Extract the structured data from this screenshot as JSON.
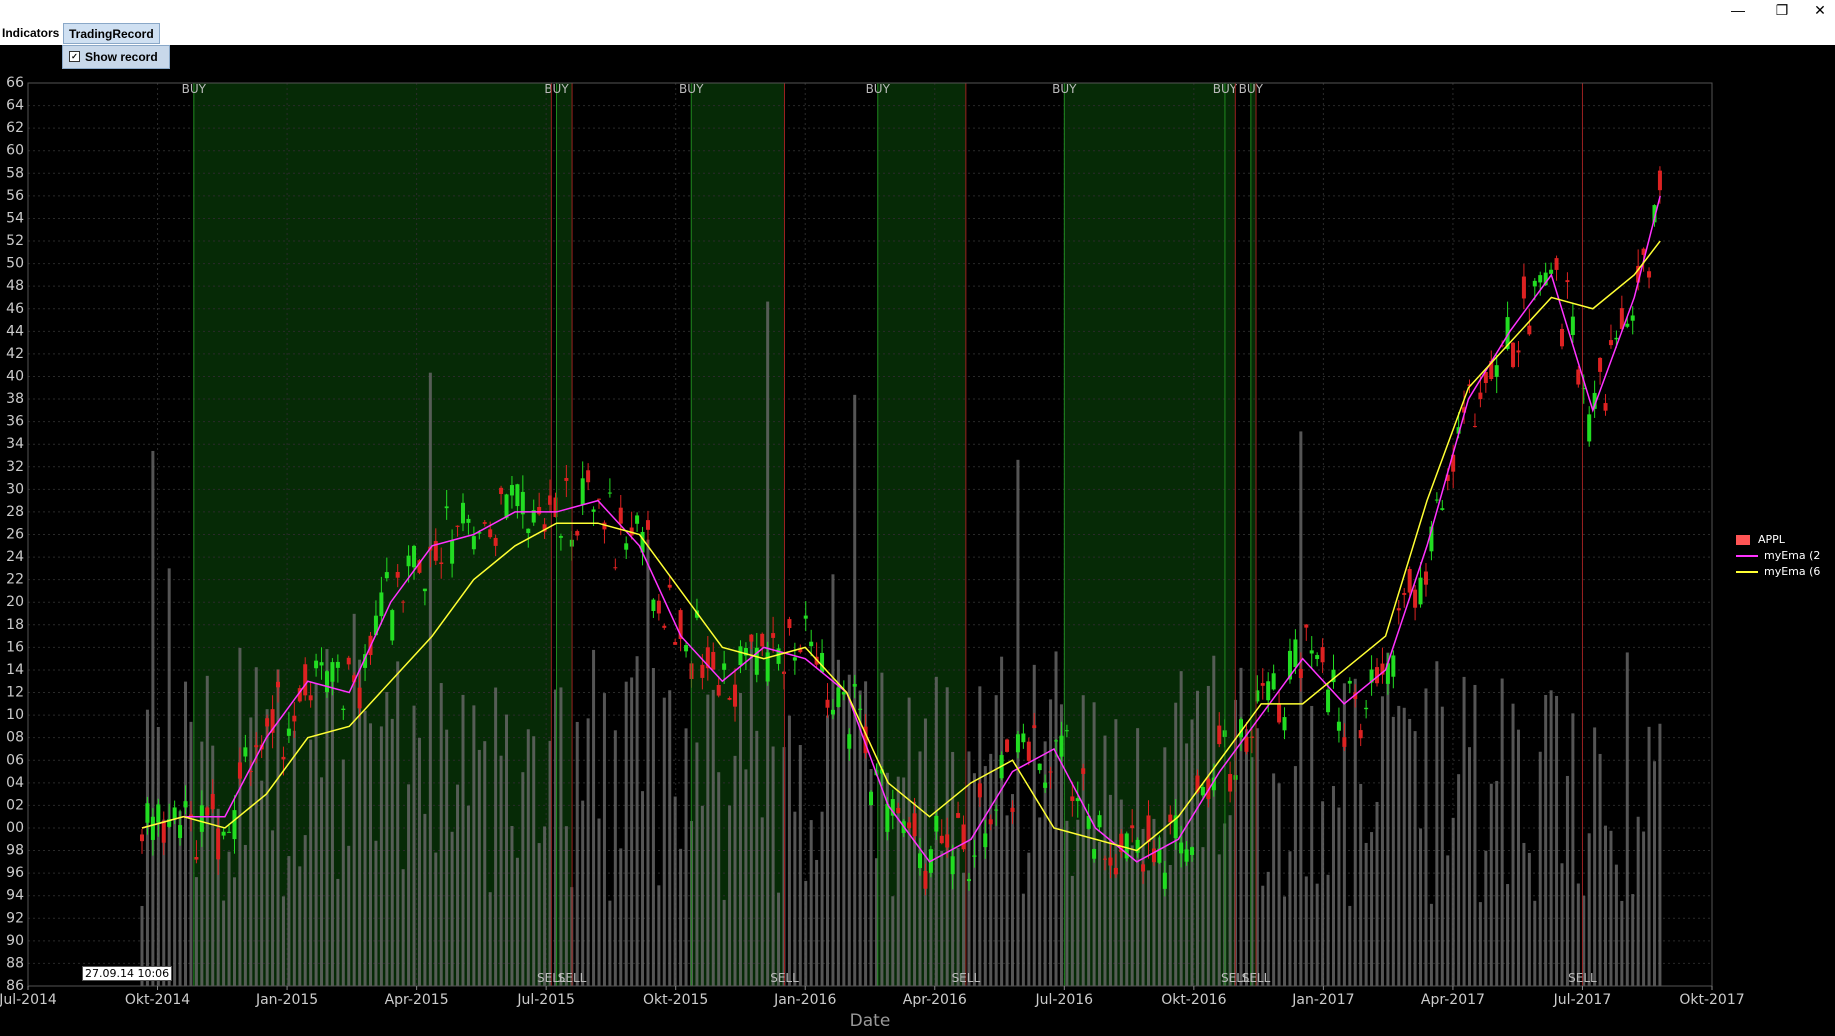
{
  "menubar": {
    "indicators_label": "Indicators",
    "tradingrecord_label": "TradingRecord",
    "show_record_label": "Show record",
    "show_record_checked": true
  },
  "window_controls": {
    "minimize": "—",
    "restore": "❐",
    "close": "✕"
  },
  "tooltip": "27.09.14 10:06",
  "legend": [
    {
      "label": "APPL",
      "color": "#ff5555",
      "kind": "box"
    },
    {
      "label": "myEma (2",
      "color": "#ff33ff",
      "kind": "line"
    },
    {
      "label": "myEma (6",
      "color": "#ffff33",
      "kind": "line"
    }
  ],
  "chart_data": {
    "type": "line",
    "xlabel": "Date",
    "ylabel": "",
    "x_ticks": [
      "Jul-2014",
      "Okt-2014",
      "Jan-2015",
      "Apr-2015",
      "Jul-2015",
      "Okt-2015",
      "Jan-2016",
      "Apr-2016",
      "Jul-2016",
      "Okt-2016",
      "Jan-2017",
      "Apr-2017",
      "Jul-2017",
      "Okt-2017"
    ],
    "y_ticks": [
      "86",
      "88",
      "90",
      "92",
      "94",
      "96",
      "98",
      "00",
      "02",
      "04",
      "06",
      "08",
      "10",
      "12",
      "14",
      "16",
      "18",
      "20",
      "22",
      "24",
      "26",
      "28",
      "30",
      "32",
      "34",
      "36",
      "38",
      "40",
      "42",
      "44",
      "46",
      "48",
      "50",
      "52",
      "54",
      "56",
      "58",
      "60",
      "62",
      "64",
      "66"
    ],
    "ylim": [
      86,
      166
    ],
    "xlim": [
      2014.5,
      2017.75
    ],
    "grid": true,
    "series": [
      {
        "name": "myEma (2",
        "color": "#ff33ff",
        "x": [
          2014.72,
          2014.8,
          2014.88,
          2014.96,
          2015.04,
          2015.12,
          2015.2,
          2015.28,
          2015.36,
          2015.44,
          2015.52,
          2015.6,
          2015.68,
          2015.76,
          2015.84,
          2015.92,
          2016.0,
          2016.08,
          2016.16,
          2016.24,
          2016.32,
          2016.4,
          2016.48,
          2016.56,
          2016.64,
          2016.72,
          2016.8,
          2016.88,
          2016.96,
          2017.04,
          2017.12,
          2017.2,
          2017.28,
          2017.36,
          2017.44,
          2017.52,
          2017.6,
          2017.65
        ],
        "y": [
          100,
          101,
          101,
          108,
          113,
          112,
          120,
          125,
          126,
          128,
          128,
          129,
          125,
          117,
          113,
          116,
          115,
          112,
          102,
          97,
          99,
          105,
          107,
          100,
          97,
          99,
          105,
          110,
          115,
          111,
          114,
          125,
          138,
          144,
          149,
          137,
          147,
          156
        ]
      },
      {
        "name": "myEma (6",
        "color": "#ffff33",
        "x": [
          2014.72,
          2014.8,
          2014.88,
          2014.96,
          2015.04,
          2015.12,
          2015.2,
          2015.28,
          2015.36,
          2015.44,
          2015.52,
          2015.6,
          2015.68,
          2015.76,
          2015.84,
          2015.92,
          2016.0,
          2016.08,
          2016.16,
          2016.24,
          2016.32,
          2016.4,
          2016.48,
          2016.56,
          2016.64,
          2016.72,
          2016.8,
          2016.88,
          2016.96,
          2017.04,
          2017.12,
          2017.2,
          2017.28,
          2017.36,
          2017.44,
          2017.52,
          2017.6,
          2017.65
        ],
        "y": [
          100,
          101,
          100,
          103,
          108,
          109,
          113,
          117,
          122,
          125,
          127,
          127,
          126,
          121,
          116,
          115,
          116,
          112,
          104,
          101,
          104,
          106,
          100,
          99,
          98,
          101,
          106,
          111,
          111,
          114,
          117,
          129,
          139,
          143,
          147,
          146,
          149,
          152
        ]
      }
    ],
    "trade_markers": [
      {
        "label": "BUY",
        "x": 2014.82
      },
      {
        "label": "BUY",
        "x": 2015.52
      },
      {
        "label": "BUY",
        "x": 2015.78
      },
      {
        "label": "BUY",
        "x": 2016.14
      },
      {
        "label": "BUY",
        "x": 2016.5
      },
      {
        "label": "BUY",
        "x": 2016.81
      },
      {
        "label": "BUY",
        "x": 2016.86
      },
      {
        "label": "SELL",
        "x": 2015.51
      },
      {
        "label": "SELL",
        "x": 2015.55
      },
      {
        "label": "SELL",
        "x": 2015.96
      },
      {
        "label": "SELL",
        "x": 2016.31
      },
      {
        "label": "SELL",
        "x": 2016.83
      },
      {
        "label": "SELL",
        "x": 2016.87
      },
      {
        "label": "SELL",
        "x": 2017.5
      }
    ],
    "marker_colors": {
      "buy_line": "#1f8a1f",
      "sell_line": "#9a2020",
      "hold_fill": "#062a06"
    },
    "candle_colors": {
      "up": "#22dd22",
      "down": "#dd2222"
    },
    "volume_color": "#6a6a6a"
  }
}
